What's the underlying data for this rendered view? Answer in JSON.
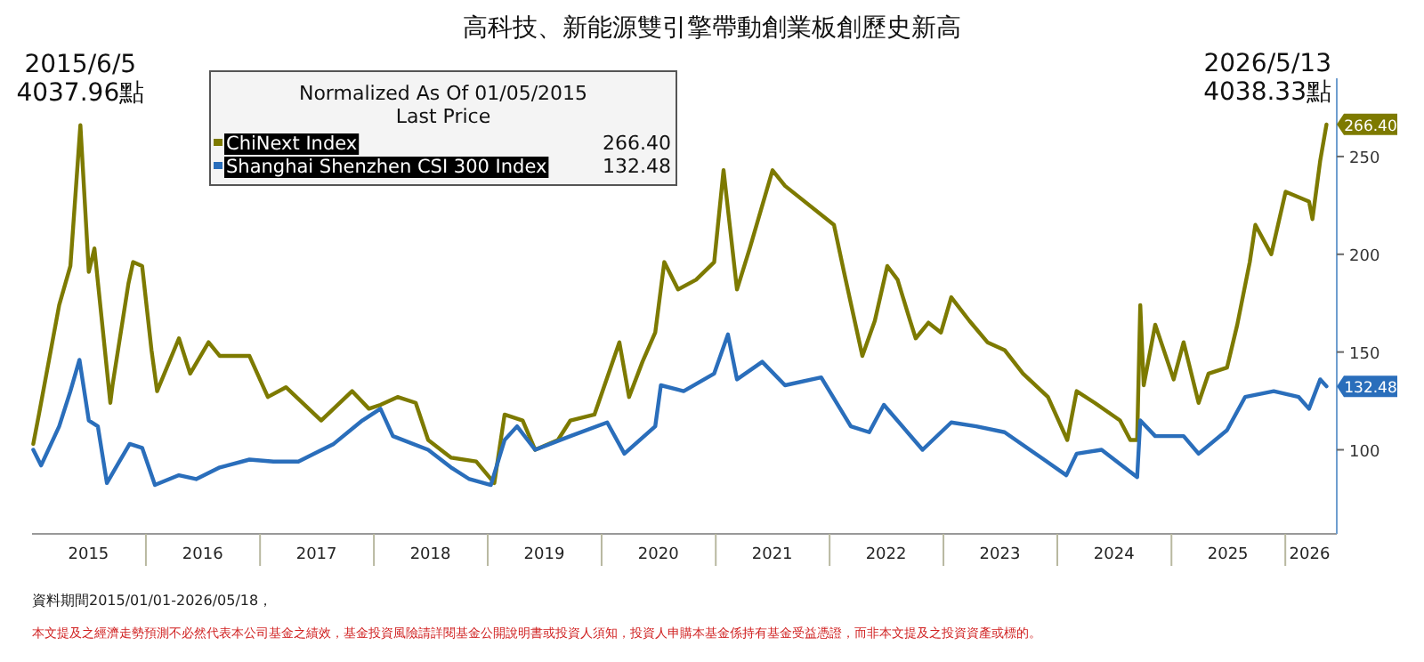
{
  "chart_data": {
    "type": "line",
    "title": "高科技、新能源雙引擎帶動創業板創歷史新高",
    "legend_title": "Normalized As Of 01/05/2015\nLast Price",
    "legend": "top left",
    "xlim": [
      "2015-01-01",
      "2026-06-15"
    ],
    "xticks": [
      {
        "value": "2015-07-01",
        "label": "2015"
      },
      {
        "value": "2016-07-01",
        "label": "2016"
      },
      {
        "value": "2017-07-01",
        "label": "2017"
      },
      {
        "value": "2018-07-01",
        "label": "2018"
      },
      {
        "value": "2019-07-01",
        "label": "2019"
      },
      {
        "value": "2020-07-01",
        "label": "2020"
      },
      {
        "value": "2021-07-01",
        "label": "2021"
      },
      {
        "value": "2022-07-01",
        "label": "2022"
      },
      {
        "value": "2023-07-01",
        "label": "2023"
      },
      {
        "value": "2024-07-01",
        "label": "2024"
      },
      {
        "value": "2025-07-01",
        "label": "2025"
      },
      {
        "value": "2026-03-20",
        "label": "2026"
      }
    ],
    "ylim": [
      57,
      290
    ],
    "yticks": [
      100,
      150,
      200,
      250
    ],
    "grid": false,
    "series": [
      {
        "name": "ChiNext Index",
        "color": "#7d7a00",
        "x": [
          "2015-01-05",
          "2015-01-23",
          "2015-03-29",
          "2015-05-04",
          "2015-06-05",
          "2015-07-02",
          "2015-07-20",
          "2015-09-09",
          "2015-09-16",
          "2015-11-06",
          "2015-11-21",
          "2015-12-20",
          "2016-01-19",
          "2016-02-06",
          "2016-04-16",
          "2016-05-22",
          "2016-07-20",
          "2016-08-25",
          "2016-11-28",
          "2017-01-26",
          "2017-03-25",
          "2017-07-16",
          "2017-10-23",
          "2017-12-16",
          "2018-01-22",
          "2018-03-18",
          "2018-05-15",
          "2018-06-24",
          "2018-09-05",
          "2018-11-25",
          "2019-01-22",
          "2019-02-24",
          "2019-04-23",
          "2019-06-02",
          "2019-08-14",
          "2019-09-23",
          "2019-12-09",
          "2020-02-27",
          "2020-03-29",
          "2020-05-11",
          "2020-06-21",
          "2020-07-20",
          "2020-09-02",
          "2020-10-30",
          "2020-12-27",
          "2021-01-26",
          "2021-03-10",
          "2021-04-20",
          "2021-07-02",
          "2021-08-11",
          "2022-01-15",
          "2022-02-16",
          "2022-04-16",
          "2022-05-26",
          "2022-07-05",
          "2022-08-07",
          "2022-09-16",
          "2022-10-04",
          "2022-11-14",
          "2022-12-24",
          "2023-01-26",
          "2023-03-25",
          "2023-05-22",
          "2023-07-16",
          "2023-09-13",
          "2023-12-02",
          "2024-02-02",
          "2024-03-03",
          "2024-04-30",
          "2024-07-20",
          "2024-08-22",
          "2024-09-13",
          "2024-09-23",
          "2024-10-04",
          "2024-11-10",
          "2025-01-08",
          "2025-02-09",
          "2025-03-29",
          "2025-04-30",
          "2025-06-28",
          "2025-07-31",
          "2025-09-09",
          "2025-09-27",
          "2025-11-17",
          "2026-01-02",
          "2026-03-18",
          "2026-03-29",
          "2026-04-23",
          "2026-05-13"
        ],
        "values": [
          103,
          118,
          174,
          194,
          266,
          191,
          203,
          124,
          133,
          185,
          196,
          194,
          151,
          130,
          157,
          139,
          155,
          148,
          148,
          127,
          132,
          115,
          130,
          121,
          123,
          127,
          124,
          105,
          96,
          94,
          83,
          118,
          115,
          100,
          105,
          115,
          118,
          155,
          127,
          145,
          160,
          196,
          182,
          187,
          196,
          243,
          182,
          203,
          243,
          235,
          215,
          191,
          148,
          166,
          194,
          187,
          166,
          157,
          165,
          160,
          178,
          166,
          155,
          151,
          139,
          127,
          105,
          130,
          124,
          115,
          105,
          105,
          174,
          133,
          164,
          136,
          155,
          124,
          139,
          142,
          164,
          196,
          215,
          200,
          232,
          227,
          218,
          248,
          266.4
        ],
        "value_labels": [
          null,
          null,
          null,
          null,
          null,
          null,
          null,
          null,
          null,
          null,
          null,
          null,
          null,
          null,
          null,
          null,
          null,
          null,
          null,
          null,
          null,
          null,
          null,
          null,
          null,
          null,
          null,
          null,
          null,
          null,
          null,
          null,
          null,
          null,
          null,
          null,
          null,
          null,
          null,
          null,
          null,
          null,
          null,
          null,
          null,
          null,
          null,
          null,
          null,
          null,
          null,
          null,
          null,
          null,
          null,
          null,
          null,
          null,
          null,
          null,
          null,
          null,
          null,
          null,
          null,
          null,
          null,
          null,
          null,
          null,
          null,
          null,
          null,
          null,
          null,
          null,
          null,
          null,
          null,
          null,
          null,
          null,
          null,
          null,
          null,
          null,
          null,
          null,
          "266.40"
        ]
      },
      {
        "name": "Shanghai Shenzhen CSI 300 Index",
        "color": "#2a6ebb",
        "x": [
          "2015-01-05",
          "2015-01-30",
          "2015-03-29",
          "2015-05-04",
          "2015-06-02",
          "2015-07-02",
          "2015-07-31",
          "2015-08-29",
          "2015-10-08",
          "2015-11-10",
          "2015-12-20",
          "2016-01-30",
          "2016-04-16",
          "2016-06-10",
          "2016-08-25",
          "2016-11-28",
          "2017-02-13",
          "2017-05-04",
          "2017-08-25",
          "2017-11-25",
          "2018-01-22",
          "2018-03-03",
          "2018-06-24",
          "2018-09-05",
          "2018-11-03",
          "2019-01-11",
          "2019-02-24",
          "2019-04-05",
          "2019-06-02",
          "2019-09-23",
          "2020-01-19",
          "2020-03-14",
          "2020-06-21",
          "2020-07-09",
          "2020-09-20",
          "2020-12-27",
          "2021-02-09",
          "2021-03-10",
          "2021-05-30",
          "2021-08-11",
          "2021-12-05",
          "2022-03-10",
          "2022-05-08",
          "2022-06-24",
          "2022-10-26",
          "2023-01-26",
          "2023-04-16",
          "2023-07-16",
          "2023-11-10",
          "2024-01-30",
          "2024-03-03",
          "2024-05-22",
          "2024-08-03",
          "2024-09-13",
          "2024-09-23",
          "2024-11-10",
          "2025-02-09",
          "2025-03-29",
          "2025-06-28",
          "2025-08-25",
          "2025-11-25",
          "2026-02-13",
          "2026-03-18",
          "2026-04-23",
          "2026-05-13"
        ],
        "values": [
          100,
          92,
          112,
          130,
          146,
          115,
          112,
          83,
          94,
          103,
          101,
          82,
          87,
          85,
          91,
          95,
          94,
          94,
          103,
          115,
          121,
          107,
          100,
          91,
          85,
          82,
          105,
          112,
          100,
          107,
          114,
          98,
          112,
          133,
          130,
          139,
          159,
          136,
          145,
          133,
          137,
          112,
          109,
          123,
          100,
          114,
          112,
          109,
          96,
          87,
          98,
          100,
          91,
          86,
          115,
          107,
          107,
          98,
          110,
          127,
          130,
          127,
          121,
          136,
          132.48
        ],
        "value_labels": [
          null,
          null,
          null,
          null,
          null,
          null,
          null,
          null,
          null,
          null,
          null,
          null,
          null,
          null,
          null,
          null,
          null,
          null,
          null,
          null,
          null,
          null,
          null,
          null,
          null,
          null,
          null,
          null,
          null,
          null,
          null,
          null,
          null,
          null,
          null,
          null,
          null,
          null,
          null,
          null,
          null,
          null,
          null,
          null,
          null,
          null,
          null,
          null,
          null,
          null,
          null,
          null,
          null,
          null,
          null,
          null,
          null,
          null,
          null,
          null,
          null,
          null,
          null,
          null,
          "132.48"
        ]
      }
    ],
    "annotations": [
      {
        "text": "2015/6/5\n4037.96點",
        "x": "2015-06-05",
        "y": 266
      },
      {
        "text": "2026/5/13\n4038.33點",
        "x": "2026-05-13",
        "y": 266.4
      },
      "資料期間2015/01/01-2026/05/18，",
      "本文提及之經濟走勢預測不必然代表本公司基金之績效，基金投資風險請詳閱基金公開說明書或投資人須知，投資人申購本基金係持有基金受益憑證，而非本文提及之投資資產或標的。"
    ]
  }
}
